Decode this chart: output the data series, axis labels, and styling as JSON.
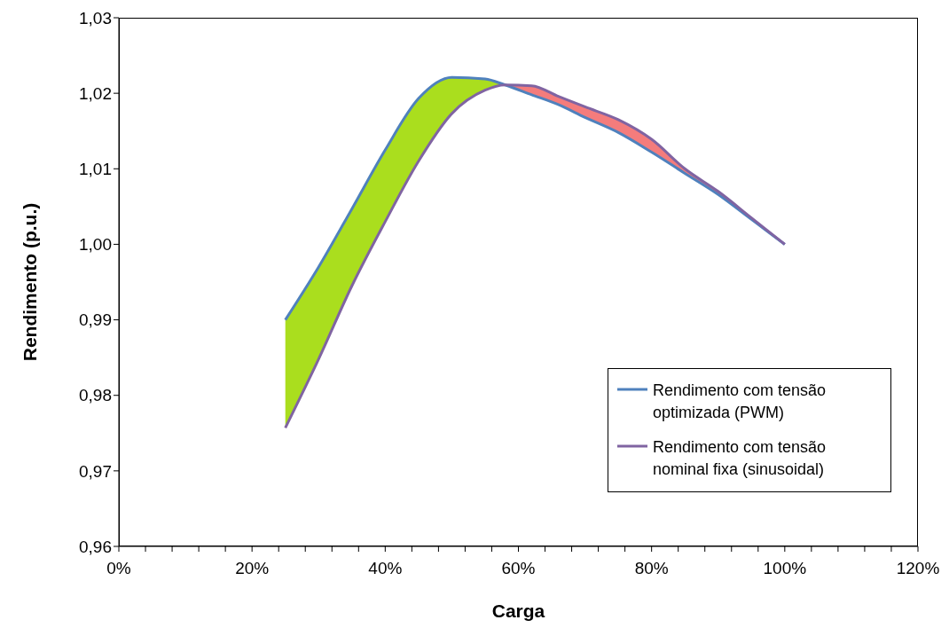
{
  "chart_data": {
    "type": "line",
    "xlabel": "Carga",
    "ylabel": "Rendimento (p.u.)",
    "xlim": [
      0,
      120
    ],
    "xticks": [
      {
        "value": 0,
        "label": "0%"
      },
      {
        "value": 4,
        "label": null
      },
      {
        "value": 8,
        "label": null
      },
      {
        "value": 12,
        "label": null
      },
      {
        "value": 16,
        "label": null
      },
      {
        "value": 20,
        "label": "20%"
      },
      {
        "value": 24,
        "label": null
      },
      {
        "value": 28,
        "label": null
      },
      {
        "value": 32,
        "label": null
      },
      {
        "value": 36,
        "label": null
      },
      {
        "value": 40,
        "label": "40%"
      },
      {
        "value": 44,
        "label": null
      },
      {
        "value": 48,
        "label": null
      },
      {
        "value": 52,
        "label": null
      },
      {
        "value": 56,
        "label": null
      },
      {
        "value": 60,
        "label": "60%"
      },
      {
        "value": 64,
        "label": null
      },
      {
        "value": 68,
        "label": null
      },
      {
        "value": 72,
        "label": null
      },
      {
        "value": 76,
        "label": null
      },
      {
        "value": 80,
        "label": "80%"
      },
      {
        "value": 84,
        "label": null
      },
      {
        "value": 88,
        "label": null
      },
      {
        "value": 92,
        "label": null
      },
      {
        "value": 96,
        "label": null
      },
      {
        "value": 100,
        "label": "100%"
      },
      {
        "value": 104,
        "label": null
      },
      {
        "value": 108,
        "label": null
      },
      {
        "value": 112,
        "label": null
      },
      {
        "value": 116,
        "label": null
      },
      {
        "value": 120,
        "label": "120%"
      }
    ],
    "ylim": [
      0.96,
      1.03
    ],
    "yticks": [
      {
        "value": 0.96,
        "label": "0,96"
      },
      {
        "value": 0.97,
        "label": "0,97"
      },
      {
        "value": 0.98,
        "label": "0,98"
      },
      {
        "value": 0.99,
        "label": "0,99"
      },
      {
        "value": 1.0,
        "label": "1,00"
      },
      {
        "value": 1.01,
        "label": "1,01"
      },
      {
        "value": 1.02,
        "label": "1,02"
      },
      {
        "value": 1.03,
        "label": "1,03"
      }
    ],
    "x": [
      25,
      30,
      35,
      40,
      45,
      50,
      55,
      58,
      62,
      66,
      70,
      75,
      80,
      85,
      90,
      95,
      100
    ],
    "legend": "bottom right",
    "series": [
      {
        "color": "#aade1e",
        "x": [
          25,
          30,
          35,
          40,
          45,
          50,
          55,
          58
        ],
        "values": [
          null,
          null,
          null,
          null,
          null,
          null,
          null,
          null
        ],
        "lower": [
          0.9757,
          0.9848,
          0.9945,
          1.003,
          1.011,
          1.0173,
          1.0204,
          1.0211
        ],
        "upper": [
          0.99,
          0.997,
          1.0047,
          1.0125,
          1.0193,
          1.0221,
          1.0219,
          1.0211
        ]
      },
      {
        "color": "#f47c7c",
        "x": [
          58,
          62,
          66,
          70,
          75,
          80,
          85,
          90,
          95,
          100
        ],
        "values": [
          null,
          null,
          null,
          null,
          null,
          null,
          null,
          null,
          null,
          null
        ],
        "lower": [
          1.0211,
          1.0198,
          1.0185,
          1.0168,
          1.0148,
          1.0122,
          1.0094,
          1.0066,
          1.0033,
          1.0
        ],
        "upper": [
          1.0211,
          1.021,
          1.0196,
          1.0182,
          1.0165,
          1.0139,
          1.01,
          1.007,
          1.0035,
          1.0
        ]
      },
      {
        "name": "Rendimento com tensão optimizada (PWM)",
        "color": "#4f81bd",
        "values": [
          0.99,
          0.997,
          1.0047,
          1.0125,
          1.0193,
          1.0221,
          1.0219,
          1.0211,
          1.0198,
          1.0185,
          1.0168,
          1.0148,
          1.0122,
          1.0094,
          1.0066,
          1.0033,
          1.0
        ]
      },
      {
        "name": "Rendimento com tensão nominal fixa (sinusoidal)",
        "color": "#8064a2",
        "values": [
          0.9757,
          0.9848,
          0.9945,
          1.003,
          1.011,
          1.0173,
          1.0204,
          1.0211,
          1.021,
          1.0196,
          1.0182,
          1.0165,
          1.0139,
          1.01,
          1.007,
          1.0035,
          1.0
        ]
      }
    ]
  }
}
